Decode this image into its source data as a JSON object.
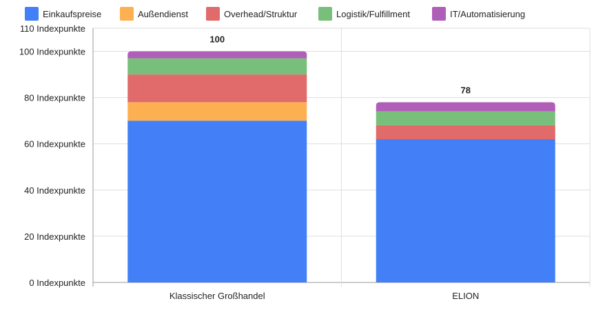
{
  "chart_data": {
    "type": "bar",
    "stacked": true,
    "title": "",
    "xlabel": "",
    "ylabel": "",
    "ylim": [
      0,
      110
    ],
    "yticks": [
      0,
      20,
      40,
      60,
      80,
      100,
      110
    ],
    "ytick_suffix": " Indexpunkte",
    "categories": [
      "Klassischer Großhandel",
      "ELION"
    ],
    "totals": [
      100,
      78
    ],
    "legend_position": "top",
    "grid": true,
    "series": [
      {
        "name": "Einkaufspreise",
        "color": "#4380f7",
        "values": [
          70,
          62
        ]
      },
      {
        "name": "Außendienst",
        "color": "#fdb052",
        "values": [
          8,
          0
        ]
      },
      {
        "name": "Overhead/Struktur",
        "color": "#e06b6a",
        "values": [
          12,
          6
        ]
      },
      {
        "name": "Logistik/Fulfillment",
        "color": "#79bf7c",
        "values": [
          7,
          6
        ]
      },
      {
        "name": "IT/Automatisierung",
        "color": "#b05fb8",
        "values": [
          3,
          4
        ]
      }
    ]
  }
}
